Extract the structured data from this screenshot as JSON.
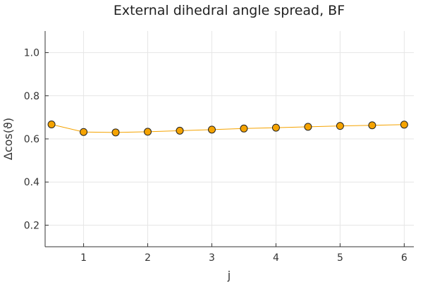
{
  "chart_data": {
    "type": "line",
    "title": "External dihedral angle spread, BF",
    "xlabel": "j",
    "ylabel": "Δcos(ϑ)",
    "xlim": [
      0.4,
      6.15
    ],
    "ylim": [
      0.1,
      1.1
    ],
    "xticks": [
      1,
      2,
      3,
      4,
      5,
      6
    ],
    "yticks": [
      0.2,
      0.4,
      0.6,
      0.8,
      1.0
    ],
    "xtick_labels": [
      "1",
      "2",
      "3",
      "4",
      "5",
      "6"
    ],
    "ytick_labels": [
      "0.2",
      "0.4",
      "0.6",
      "0.8",
      "1.0"
    ],
    "grid": true,
    "series": [
      {
        "color": "#f5a300",
        "marker": "circle",
        "x": [
          0.5,
          1.0,
          1.5,
          2.0,
          2.5,
          3.0,
          3.5,
          4.0,
          4.5,
          5.0,
          5.5,
          6.0
        ],
        "y": [
          0.667,
          0.632,
          0.63,
          0.633,
          0.638,
          0.643,
          0.648,
          0.652,
          0.656,
          0.66,
          0.663,
          0.666
        ]
      }
    ]
  }
}
